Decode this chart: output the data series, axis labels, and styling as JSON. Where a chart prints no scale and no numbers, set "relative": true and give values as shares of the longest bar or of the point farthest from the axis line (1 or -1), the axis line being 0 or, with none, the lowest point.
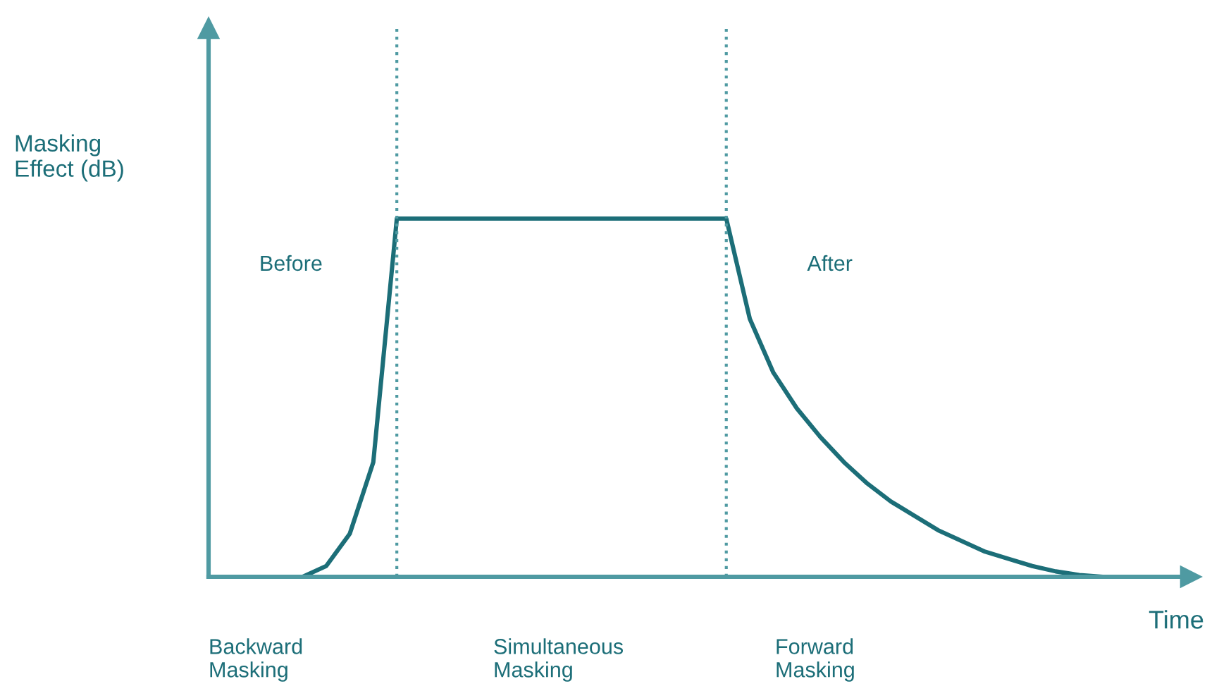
{
  "chart_data": {
    "type": "line",
    "relative": true,
    "xlabel": "Time",
    "ylabel": "Masking\nEffect (dB)",
    "categories": [
      null,
      null,
      null,
      null,
      null,
      null,
      null,
      null,
      null,
      null,
      null,
      null,
      null,
      null,
      null,
      null,
      null,
      null,
      null,
      null,
      null,
      null,
      null,
      null,
      null,
      null,
      null,
      null,
      null,
      null,
      null,
      null,
      null,
      null,
      null,
      null,
      null,
      null,
      null,
      null,
      null,
      null
    ],
    "series": [
      {
        "color": "#1c6e78",
        "values": [
          0,
          0,
          0,
          0,
          0,
          0.03,
          0.12,
          0.32,
          1,
          1,
          1,
          1,
          1,
          1,
          1,
          1,
          1,
          1,
          1,
          1,
          1,
          1,
          1,
          0.72,
          0.57,
          0.47,
          0.39,
          0.32,
          0.26,
          0.21,
          0.17,
          0.13,
          0.1,
          0.07,
          0.05,
          0.03,
          0.015,
          0.005,
          0,
          0,
          0,
          0
        ]
      }
    ],
    "annotations": [
      "Before",
      "After",
      "Backward\nMasking",
      "Simultaneous\nMasking",
      "Forward\nMasking"
    ],
    "marker": "none",
    "line_style": "solid"
  }
}
